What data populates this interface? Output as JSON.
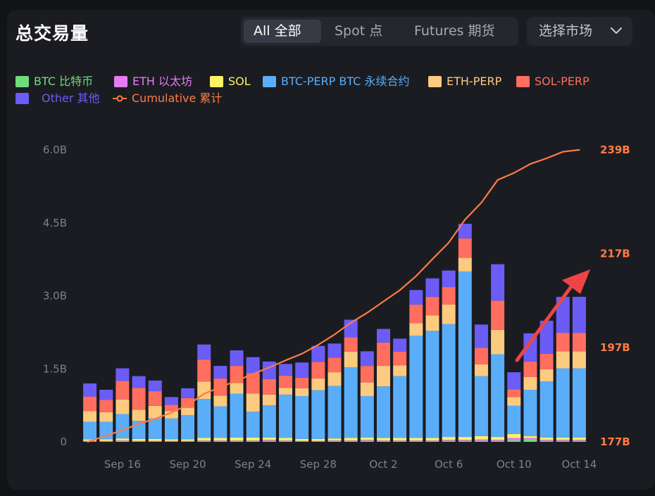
{
  "title": "总交易量",
  "tabs": [
    {
      "label": "All  全部",
      "active": true
    },
    {
      "label": "Spot  点",
      "active": false
    },
    {
      "label": "Futures  期货",
      "active": false
    }
  ],
  "market_select": {
    "label": "选择市场",
    "icon": "chevron-down-icon"
  },
  "legend": [
    {
      "label": "BTC  比特币",
      "color": "#6fdc7c"
    },
    {
      "label": "ETH  以太坊",
      "color": "#e57cf1"
    },
    {
      "label": "SOL",
      "color": "#fff263"
    },
    {
      "label": "BTC-PERP  BTC 永续合约",
      "color": "#5aadf8"
    },
    {
      "label": "ETH-PERP",
      "color": "#fdcb7f"
    },
    {
      "label": "SOL-PERP",
      "color": "#ff6e5e"
    },
    {
      "label": "Other  其他",
      "color": "#6b5cf6"
    },
    {
      "label": "Cumulative  累计",
      "color": "#ff7b45"
    }
  ],
  "chart_data": {
    "type": "bar",
    "stacked": true,
    "x_tick_labels": [
      "Sep 16",
      "Sep 20",
      "Sep 24",
      "Sep 28",
      "Oct 2",
      "Oct 6",
      "Oct 10",
      "Oct 14"
    ],
    "y_left_ticks": [
      "0",
      "1.5B",
      "3.0B",
      "4.5B",
      "6.0B"
    ],
    "y_left_range": [
      0,
      6.0
    ],
    "y_right_ticks": [
      "177B",
      "197B",
      "217B",
      "239B"
    ],
    "y_right_range": [
      177,
      239
    ],
    "categories": [
      "Sep 14",
      "Sep 15",
      "Sep 16",
      "Sep 17",
      "Sep 18",
      "Sep 19",
      "Sep 20",
      "Sep 21",
      "Sep 22",
      "Sep 23",
      "Sep 24",
      "Sep 25",
      "Sep 26",
      "Sep 27",
      "Sep 28",
      "Sep 29",
      "Sep 30",
      "Oct 1",
      "Oct 2",
      "Oct 3",
      "Oct 4",
      "Oct 5",
      "Oct 6",
      "Oct 7",
      "Oct 8",
      "Oct 9",
      "Oct 10",
      "Oct 11",
      "Oct 12",
      "Oct 13",
      "Oct 14"
    ],
    "series": [
      {
        "name": "BTC",
        "color": "#6fdc7c",
        "values": [
          0.01,
          0.01,
          0.02,
          0.01,
          0.01,
          0.01,
          0.01,
          0.02,
          0.02,
          0.02,
          0.02,
          0.02,
          0.02,
          0.01,
          0.01,
          0.02,
          0.02,
          0.02,
          0.02,
          0.02,
          0.02,
          0.02,
          0.02,
          0.02,
          0.02,
          0.02,
          0.03,
          0.05,
          0.02,
          0.02,
          0.02
        ]
      },
      {
        "name": "ETH",
        "color": "#e57cf1",
        "values": [
          0.01,
          0.01,
          0.01,
          0.01,
          0.01,
          0.01,
          0.01,
          0.01,
          0.01,
          0.01,
          0.01,
          0.02,
          0.01,
          0.01,
          0.01,
          0.01,
          0.01,
          0.02,
          0.01,
          0.01,
          0.01,
          0.01,
          0.02,
          0.02,
          0.03,
          0.02,
          0.05,
          0.03,
          0.02,
          0.02,
          0.02
        ]
      },
      {
        "name": "SOL",
        "color": "#fff263",
        "values": [
          0.03,
          0.03,
          0.04,
          0.04,
          0.04,
          0.03,
          0.03,
          0.05,
          0.05,
          0.06,
          0.06,
          0.05,
          0.05,
          0.04,
          0.04,
          0.04,
          0.05,
          0.05,
          0.05,
          0.05,
          0.05,
          0.05,
          0.06,
          0.06,
          0.07,
          0.06,
          0.08,
          0.04,
          0.05,
          0.05,
          0.05
        ]
      },
      {
        "name": "BTC-PERP",
        "color": "#5aadf8",
        "values": [
          0.36,
          0.36,
          0.5,
          0.37,
          0.42,
          0.43,
          0.5,
          0.8,
          0.65,
          0.9,
          0.53,
          0.66,
          0.89,
          0.88,
          1.0,
          1.08,
          1.45,
          0.85,
          1.06,
          1.27,
          2.1,
          2.2,
          2.32,
          3.4,
          1.23,
          1.7,
          0.58,
          0.95,
          1.15,
          1.42,
          1.42
        ]
      },
      {
        "name": "ETH-PERP",
        "color": "#fdcb7f",
        "values": [
          0.22,
          0.2,
          0.3,
          0.23,
          0.26,
          0.15,
          0.15,
          0.36,
          0.22,
          0.22,
          0.37,
          0.22,
          0.14,
          0.16,
          0.24,
          0.28,
          0.32,
          0.28,
          0.42,
          0.22,
          0.26,
          0.32,
          0.4,
          0.28,
          0.24,
          0.5,
          0.18,
          0.26,
          0.25,
          0.35,
          0.35
        ]
      },
      {
        "name": "SOL-PERP",
        "color": "#ff6e5e",
        "values": [
          0.3,
          0.25,
          0.38,
          0.45,
          0.3,
          0.13,
          0.2,
          0.45,
          0.35,
          0.35,
          0.42,
          0.32,
          0.25,
          0.22,
          0.34,
          0.3,
          0.3,
          0.34,
          0.48,
          0.28,
          0.38,
          0.38,
          0.36,
          0.4,
          0.34,
          0.6,
          0.16,
          0.32,
          0.32,
          0.38,
          0.38
        ]
      },
      {
        "name": "Other",
        "color": "#6b5cf6",
        "values": [
          0.27,
          0.21,
          0.26,
          0.24,
          0.22,
          0.16,
          0.2,
          0.31,
          0.26,
          0.32,
          0.33,
          0.36,
          0.24,
          0.31,
          0.33,
          0.29,
          0.36,
          0.3,
          0.28,
          0.27,
          0.3,
          0.38,
          0.34,
          0.3,
          0.48,
          0.75,
          0.35,
          0.58,
          0.68,
          0.74,
          0.74
        ]
      }
    ],
    "cumulative": {
      "name": "Cumulative",
      "color": "#ff7b45",
      "values": [
        177.0,
        178.3,
        179.5,
        180.8,
        181.9,
        183.2,
        184.8,
        187.2,
        188.6,
        190.0,
        191.4,
        192.8,
        194.3,
        195.7,
        197.6,
        199.8,
        202.3,
        204.4,
        206.8,
        209.2,
        212.2,
        215.8,
        219.3,
        224.2,
        227.8,
        232.6,
        234.1,
        236.0,
        237.2,
        238.6,
        239.0
      ]
    },
    "annotation": "red-arrow"
  }
}
